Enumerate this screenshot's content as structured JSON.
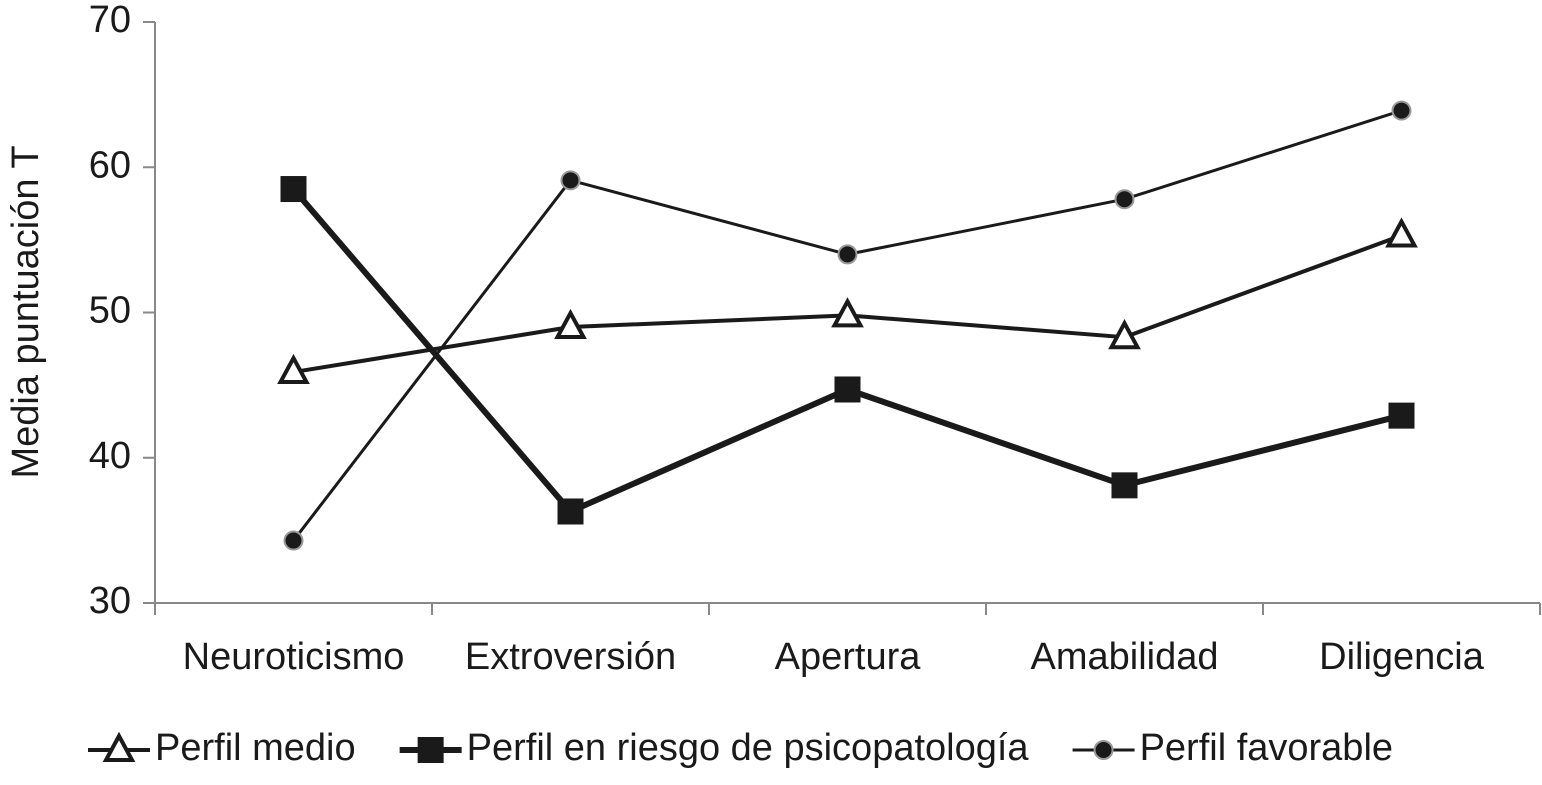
{
  "chart_data": {
    "type": "line",
    "y_label": "Media puntuación T",
    "categories": [
      "Neuroticismo",
      "Extroversión",
      "Apertura",
      "Amabilidad",
      "Diligencia"
    ],
    "series": [
      {
        "name": "Perfil medio",
        "color": "#1a1a1a",
        "marker": "triangle",
        "line_width": 4,
        "values": [
          45.9,
          49.0,
          49.8,
          48.3,
          55.3
        ]
      },
      {
        "name": "Perfil en riesgo de psicopatología",
        "color": "#1a1a1a",
        "marker": "square",
        "line_width": 6,
        "values": [
          58.5,
          36.3,
          44.7,
          38.1,
          42.9
        ]
      },
      {
        "name": "Perfil favorable",
        "color": "#1a1a1a",
        "marker": "circle",
        "line_width": 3,
        "values": [
          34.3,
          59.1,
          54.0,
          57.8,
          63.9
        ]
      }
    ],
    "ylim": [
      30,
      70
    ],
    "yticks": [
      30,
      40,
      50,
      60,
      70
    ],
    "grid": false,
    "legend": "bottom"
  }
}
